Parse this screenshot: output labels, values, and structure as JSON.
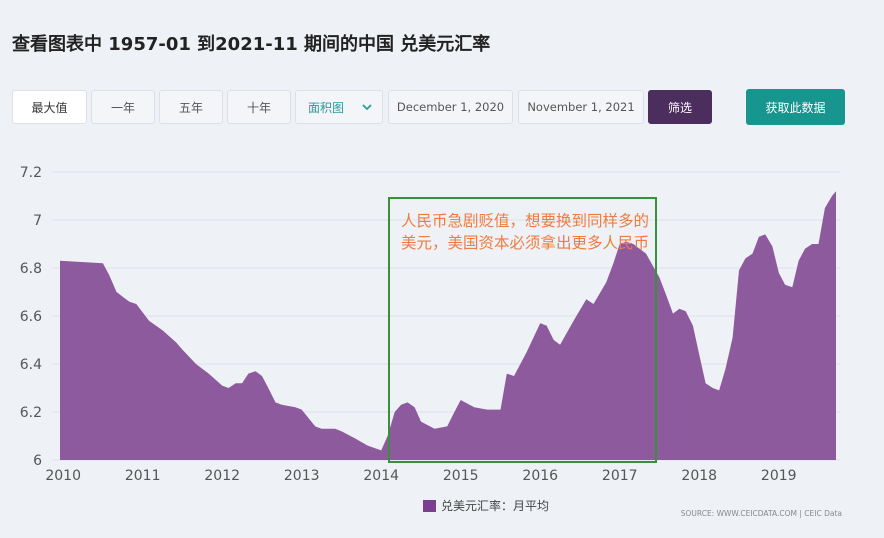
{
  "page": {
    "title": "查看图表中 1957-01 到2021-11 期间的中国 兑美元汇率"
  },
  "toolbar": {
    "range_buttons": [
      "最大值",
      "一年",
      "五年",
      "十年"
    ],
    "chart_type_select": "面积图",
    "date_from": "December 1, 2020",
    "date_to": "November 1, 2021",
    "filter_label": "筛选",
    "fetch_label": "获取此数据"
  },
  "annotation": {
    "text": "人民币急剧贬值，想要换到同样多的美元，美国资本必须拿出更多人民币",
    "box_color": "#3a8f3a",
    "text_color": "#f07b3f"
  },
  "legend": {
    "label": "兑美元汇率：月平均",
    "color": "#7b3f8f"
  },
  "source": "SOURCE: WWW.CEICDATA.COM | CEIC Data",
  "chart_data": {
    "type": "area",
    "title": "",
    "xlabel": "",
    "ylabel": "",
    "ylim": [
      6,
      7.2
    ],
    "yticks": [
      6,
      6.2,
      6.4,
      6.6,
      6.8,
      7,
      7.2
    ],
    "xlim": [
      2009.96,
      2019.72
    ],
    "xticks": [
      2010,
      2011,
      2012,
      2013,
      2014,
      2015,
      2016,
      2017,
      2018,
      2019
    ],
    "grid": true,
    "fill_color": "#8e5a9e",
    "series": [
      {
        "name": "兑美元汇率：月平均",
        "x": [
          2009.96,
          2010.5,
          2010.58,
          2010.67,
          2010.83,
          2010.92,
          2011.08,
          2011.25,
          2011.42,
          2011.5,
          2011.67,
          2011.83,
          2012.0,
          2012.08,
          2012.17,
          2012.25,
          2012.33,
          2012.42,
          2012.5,
          2012.58,
          2012.67,
          2012.75,
          2012.92,
          2013.0,
          2013.17,
          2013.25,
          2013.42,
          2013.5,
          2013.67,
          2013.83,
          2014.0,
          2014.08,
          2014.17,
          2014.25,
          2014.33,
          2014.42,
          2014.5,
          2014.67,
          2014.83,
          2014.92,
          2015.0,
          2015.17,
          2015.33,
          2015.5,
          2015.58,
          2015.67,
          2015.83,
          2016.0,
          2016.08,
          2016.17,
          2016.25,
          2016.42,
          2016.58,
          2016.67,
          2016.83,
          2016.92,
          2017.0,
          2017.08,
          2017.17,
          2017.25,
          2017.33,
          2017.5,
          2017.58,
          2017.67,
          2017.75,
          2017.83,
          2017.92,
          2018.0,
          2018.08,
          2018.17,
          2018.25,
          2018.33,
          2018.42,
          2018.5,
          2018.58,
          2018.67,
          2018.75,
          2018.83,
          2018.92,
          2019.0,
          2019.08,
          2019.17,
          2019.25,
          2019.33,
          2019.42,
          2019.5,
          2019.58,
          2019.67,
          2019.72
        ],
        "values": [
          6.83,
          6.82,
          6.77,
          6.7,
          6.66,
          6.65,
          6.58,
          6.54,
          6.49,
          6.46,
          6.4,
          6.36,
          6.31,
          6.3,
          6.32,
          6.32,
          6.36,
          6.37,
          6.35,
          6.3,
          6.24,
          6.23,
          6.22,
          6.21,
          6.14,
          6.13,
          6.13,
          6.12,
          6.09,
          6.06,
          6.04,
          6.1,
          6.2,
          6.23,
          6.24,
          6.22,
          6.16,
          6.13,
          6.14,
          6.2,
          6.25,
          6.22,
          6.21,
          6.21,
          6.36,
          6.35,
          6.45,
          6.57,
          6.56,
          6.5,
          6.48,
          6.58,
          6.67,
          6.65,
          6.74,
          6.82,
          6.9,
          6.91,
          6.9,
          6.88,
          6.86,
          6.76,
          6.69,
          6.61,
          6.63,
          6.62,
          6.56,
          6.44,
          6.32,
          6.3,
          6.29,
          6.38,
          6.51,
          6.79,
          6.84,
          6.86,
          6.93,
          6.94,
          6.89,
          6.78,
          6.73,
          6.72,
          6.83,
          6.88,
          6.9,
          6.9,
          7.05,
          7.1,
          7.12
        ]
      }
    ]
  }
}
